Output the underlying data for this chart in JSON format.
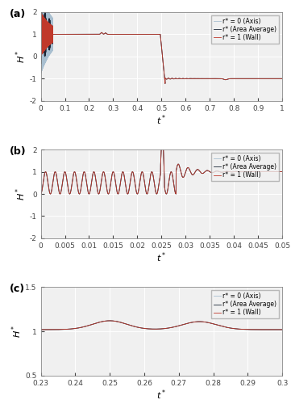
{
  "panel_a": {
    "label": "(a)",
    "xlim": [
      0,
      1
    ],
    "ylim": [
      -2,
      2
    ],
    "xlabel": "t*",
    "ylabel": "H*",
    "xticks": [
      0,
      0.1,
      0.2,
      0.3,
      0.4,
      0.5,
      0.6,
      0.7,
      0.8,
      0.9,
      1.0
    ],
    "yticks": [
      -2,
      -1,
      0,
      1,
      2
    ]
  },
  "panel_b": {
    "label": "(b)",
    "xlim": [
      0,
      0.05
    ],
    "ylim": [
      -2,
      2
    ],
    "xlabel": "t*",
    "ylabel": "H*",
    "xticks": [
      0,
      0.005,
      0.01,
      0.015,
      0.02,
      0.025,
      0.03,
      0.035,
      0.04,
      0.045,
      0.05
    ],
    "yticks": [
      -2,
      -1,
      0,
      1,
      2
    ]
  },
  "panel_c": {
    "label": "(c)",
    "xlim": [
      0.23,
      0.3
    ],
    "ylim": [
      0.5,
      1.5
    ],
    "xlabel": "t*",
    "ylabel": "H*",
    "xticks": [
      0.23,
      0.24,
      0.25,
      0.26,
      0.27,
      0.28,
      0.29,
      0.3
    ],
    "yticks": [
      0.5,
      1.0,
      1.5
    ]
  },
  "colors": {
    "axis_line": "#a8bfd0",
    "area_avg": "#1a2535",
    "wall": "#c0392b",
    "grid": "#d8d8d8",
    "bg": "#f5f5f5"
  },
  "legend_labels": [
    "r* = 0 (Axis)",
    "r* (Area Average)",
    "r* = 1 (Wall)"
  ],
  "figsize": [
    3.61,
    5.0
  ],
  "dpi": 100
}
